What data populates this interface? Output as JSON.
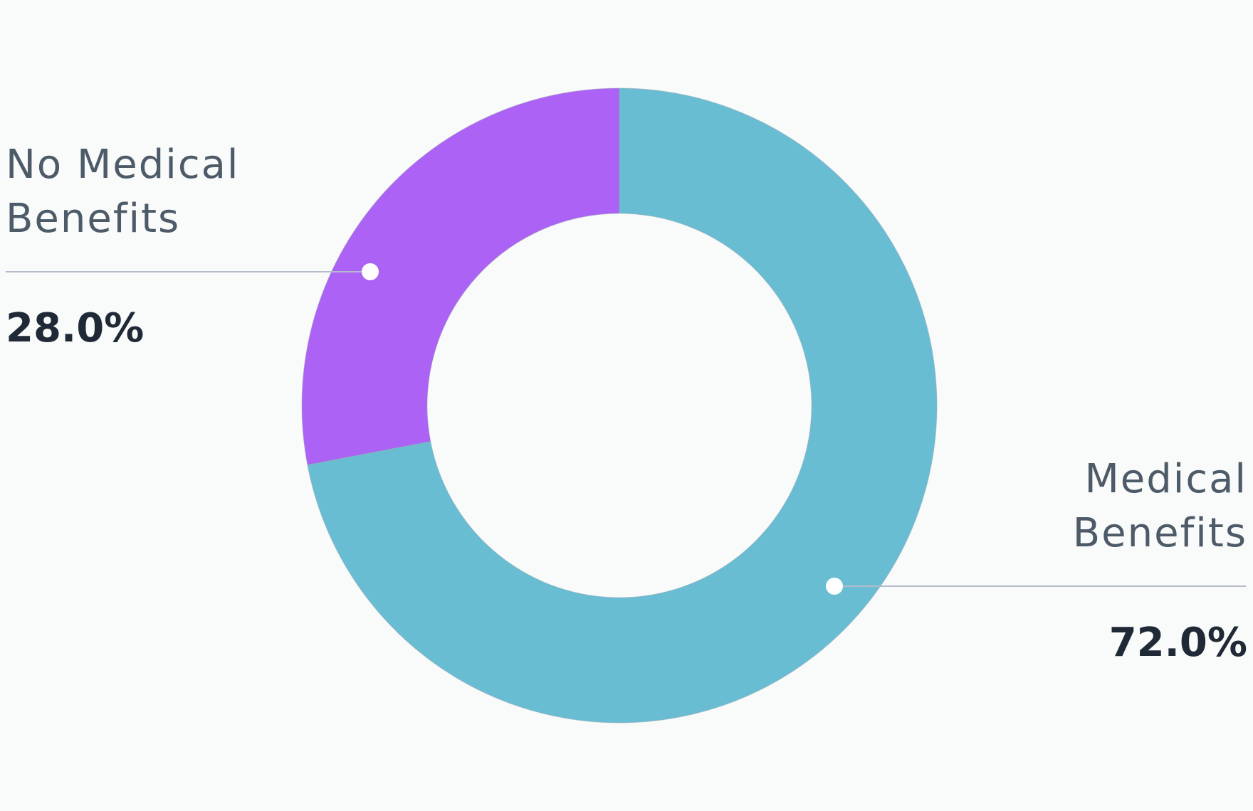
{
  "chart_data": {
    "type": "pie",
    "variant": "donut",
    "title": "",
    "categories": [
      "No Medical Benefits",
      "Medical Benefits"
    ],
    "values": [
      28.0,
      72.0
    ],
    "value_labels": [
      "28.0%",
      "72.0%"
    ],
    "colors": [
      "#ac62f5",
      "#68bdd3"
    ],
    "label_lines": [
      [
        "No Medical",
        "Benefits"
      ],
      [
        "Medical",
        "Benefits"
      ]
    ],
    "legend": "none",
    "start_angle": "12 o'clock",
    "direction": "counter-clockwise"
  }
}
